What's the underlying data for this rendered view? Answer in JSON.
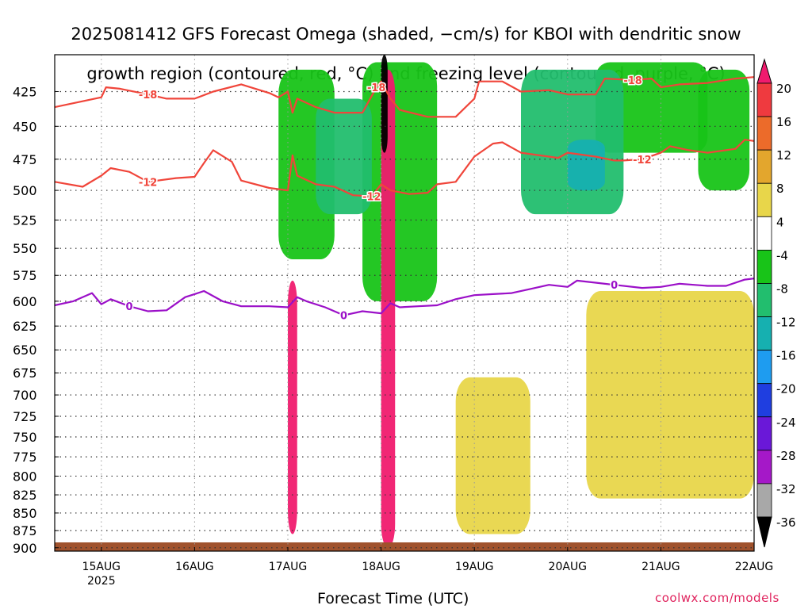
{
  "title_lines": [
    "2025081412 GFS Forecast Omega (shaded, −cm/s) for KBOI with dendritic snow",
    "growth region (contoured, red, °C) and freezing level (contoured, purple, °C)"
  ],
  "xaxis_title": "Forecast Time (UTC)",
  "credit": "coolwx.com/models",
  "colors": {
    "dgz_contour": "#f0453a",
    "freezing_contour": "#9b10c8",
    "ground": "#a0522d",
    "grid": "#333333"
  },
  "chart_data": {
    "type": "heatmap",
    "title": "2025081412 GFS Forecast Omega (shaded, −cm/s) for KBOI with dendritic snow growth region (contoured, red, °C) and freezing level (contoured, purple, °C)",
    "xlabel": "Forecast Time (UTC)",
    "ylabel": "",
    "x_ticks": [
      "15AUG",
      "16AUG",
      "17AUG",
      "18AUG",
      "19AUG",
      "20AUG",
      "21AUG",
      "22AUG"
    ],
    "x_tick_sub": {
      "15AUG": "2025"
    },
    "x_range_days": [
      14.5,
      22.0
    ],
    "y_ticks": [
      425,
      450,
      475,
      500,
      525,
      550,
      575,
      600,
      625,
      650,
      675,
      700,
      725,
      750,
      775,
      800,
      825,
      850,
      875,
      900
    ],
    "y_range": [
      400,
      905
    ],
    "y_scale": "log-pressure",
    "grid": true,
    "colorbar": {
      "labels": [
        20,
        16,
        12,
        8,
        4,
        -4,
        -8,
        -12,
        -16,
        -20,
        -24,
        -28,
        -32,
        -36
      ],
      "colors": [
        "#f01b6e",
        "#ef3a3f",
        "#ec6b2a",
        "#e3a62d",
        "#e8d64a",
        "#ffffff",
        "#18c418",
        "#22be6e",
        "#16b0b0",
        "#1e9cf0",
        "#1f3ee0",
        "#6a18d8",
        "#a518c8",
        "#a8a8a8",
        "#000000"
      ]
    },
    "contours": [
      {
        "name": "dendritic -18",
        "label": "-18",
        "color": "#f0453a",
        "points": [
          [
            14.5,
            436
          ],
          [
            15.0,
            429
          ],
          [
            15.05,
            422
          ],
          [
            15.2,
            423
          ],
          [
            15.5,
            427
          ],
          [
            15.7,
            430
          ],
          [
            16.0,
            430
          ],
          [
            16.2,
            425
          ],
          [
            16.5,
            420
          ],
          [
            16.8,
            426
          ],
          [
            16.9,
            429
          ],
          [
            17.0,
            425
          ],
          [
            17.05,
            440
          ],
          [
            17.1,
            430
          ],
          [
            17.3,
            436
          ],
          [
            17.5,
            440
          ],
          [
            17.8,
            440
          ],
          [
            17.95,
            422
          ],
          [
            18.0,
            418
          ],
          [
            18.1,
            430
          ],
          [
            18.2,
            438
          ],
          [
            18.5,
            443
          ],
          [
            18.8,
            443
          ],
          [
            19.0,
            430
          ],
          [
            19.05,
            418
          ],
          [
            19.3,
            418
          ],
          [
            19.5,
            425
          ],
          [
            19.8,
            424
          ],
          [
            20.0,
            427
          ],
          [
            20.3,
            427
          ],
          [
            20.4,
            416
          ],
          [
            20.7,
            417
          ],
          [
            20.9,
            416
          ],
          [
            21.0,
            422
          ],
          [
            21.2,
            420
          ],
          [
            21.5,
            419
          ],
          [
            21.8,
            416
          ],
          [
            22.0,
            415
          ]
        ]
      },
      {
        "name": "dendritic -12",
        "label": "-12",
        "color": "#f0453a",
        "points": [
          [
            14.5,
            493
          ],
          [
            14.8,
            497
          ],
          [
            15.0,
            488
          ],
          [
            15.1,
            482
          ],
          [
            15.3,
            485
          ],
          [
            15.5,
            493
          ],
          [
            15.8,
            490
          ],
          [
            16.0,
            489
          ],
          [
            16.1,
            478
          ],
          [
            16.2,
            468
          ],
          [
            16.4,
            477
          ],
          [
            16.5,
            492
          ],
          [
            16.8,
            498
          ],
          [
            17.0,
            500
          ],
          [
            17.05,
            472
          ],
          [
            17.1,
            488
          ],
          [
            17.3,
            495
          ],
          [
            17.5,
            497
          ],
          [
            17.7,
            504
          ],
          [
            17.9,
            505
          ],
          [
            18.0,
            495
          ],
          [
            18.1,
            500
          ],
          [
            18.3,
            503
          ],
          [
            18.5,
            502
          ],
          [
            18.6,
            495
          ],
          [
            18.8,
            493
          ],
          [
            19.0,
            473
          ],
          [
            19.2,
            463
          ],
          [
            19.3,
            462
          ],
          [
            19.5,
            470
          ],
          [
            19.7,
            472
          ],
          [
            19.9,
            474
          ],
          [
            20.0,
            470
          ],
          [
            20.3,
            473
          ],
          [
            20.5,
            476
          ],
          [
            20.6,
            476
          ],
          [
            20.8,
            475
          ],
          [
            21.0,
            470
          ],
          [
            21.1,
            465
          ],
          [
            21.3,
            468
          ],
          [
            21.5,
            470
          ],
          [
            21.8,
            467
          ],
          [
            21.9,
            460
          ],
          [
            22.0,
            461
          ]
        ]
      },
      {
        "name": "freezing level 0",
        "label": "0",
        "color": "#9b10c8",
        "points": [
          [
            14.5,
            604
          ],
          [
            14.7,
            600
          ],
          [
            14.9,
            592
          ],
          [
            15.0,
            603
          ],
          [
            15.1,
            598
          ],
          [
            15.3,
            605
          ],
          [
            15.5,
            610
          ],
          [
            15.7,
            609
          ],
          [
            15.9,
            596
          ],
          [
            16.0,
            593
          ],
          [
            16.1,
            590
          ],
          [
            16.3,
            600
          ],
          [
            16.5,
            605
          ],
          [
            16.8,
            605
          ],
          [
            17.0,
            606
          ],
          [
            17.1,
            596
          ],
          [
            17.2,
            600
          ],
          [
            17.4,
            606
          ],
          [
            17.6,
            614
          ],
          [
            17.8,
            610
          ],
          [
            18.0,
            612
          ],
          [
            18.1,
            602
          ],
          [
            18.2,
            606
          ],
          [
            18.4,
            605
          ],
          [
            18.6,
            604
          ],
          [
            18.8,
            598
          ],
          [
            19.0,
            594
          ],
          [
            19.2,
            593
          ],
          [
            19.4,
            592
          ],
          [
            19.6,
            588
          ],
          [
            19.8,
            584
          ],
          [
            20.0,
            586
          ],
          [
            20.1,
            580
          ],
          [
            20.3,
            582
          ],
          [
            20.5,
            584
          ],
          [
            20.8,
            587
          ],
          [
            21.0,
            586
          ],
          [
            21.2,
            583
          ],
          [
            21.5,
            585
          ],
          [
            21.7,
            585
          ],
          [
            21.9,
            579
          ],
          [
            22.0,
            578
          ]
        ]
      }
    ],
    "omega_regions": [
      {
        "level": "green",
        "color": "#18c418",
        "days": [
          20.3,
          21.5
        ],
        "p_range": [
          405,
          470
        ]
      },
      {
        "level": "green",
        "color": "#18c418",
        "days": [
          21.4,
          21.95
        ],
        "p_range": [
          410,
          500
        ]
      },
      {
        "level": "teal",
        "color": "#22be6e",
        "days": [
          19.5,
          20.6
        ],
        "p_range": [
          410,
          520
        ]
      },
      {
        "level": "cyan",
        "color": "#16b0b0",
        "days": [
          20.0,
          20.4
        ],
        "p_range": [
          460,
          500
        ]
      },
      {
        "level": "green",
        "color": "#18c418",
        "days": [
          16.9,
          17.5
        ],
        "p_range": [
          410,
          560
        ]
      },
      {
        "level": "green",
        "color": "#18c418",
        "days": [
          17.8,
          18.6
        ],
        "p_range": [
          405,
          600
        ]
      },
      {
        "level": "teal",
        "color": "#22be6e",
        "days": [
          17.3,
          17.9
        ],
        "p_range": [
          430,
          520
        ]
      },
      {
        "level": "yellow",
        "color": "#e8d64a",
        "days": [
          20.2,
          22.0
        ],
        "p_range": [
          590,
          830
        ]
      },
      {
        "level": "yellow",
        "color": "#e8d64a",
        "days": [
          18.8,
          19.6
        ],
        "p_range": [
          680,
          880
        ]
      },
      {
        "level": "pink",
        "color": "#f01b6e",
        "days": [
          17.0,
          17.1
        ],
        "p_range": [
          580,
          880
        ]
      },
      {
        "level": "pink",
        "color": "#f01b6e",
        "days": [
          18.0,
          18.15
        ],
        "p_range": [
          410,
          900
        ]
      },
      {
        "level": "black",
        "color": "#000000",
        "days": [
          18.0,
          18.07
        ],
        "p_range": [
          400,
          470
        ]
      }
    ]
  }
}
